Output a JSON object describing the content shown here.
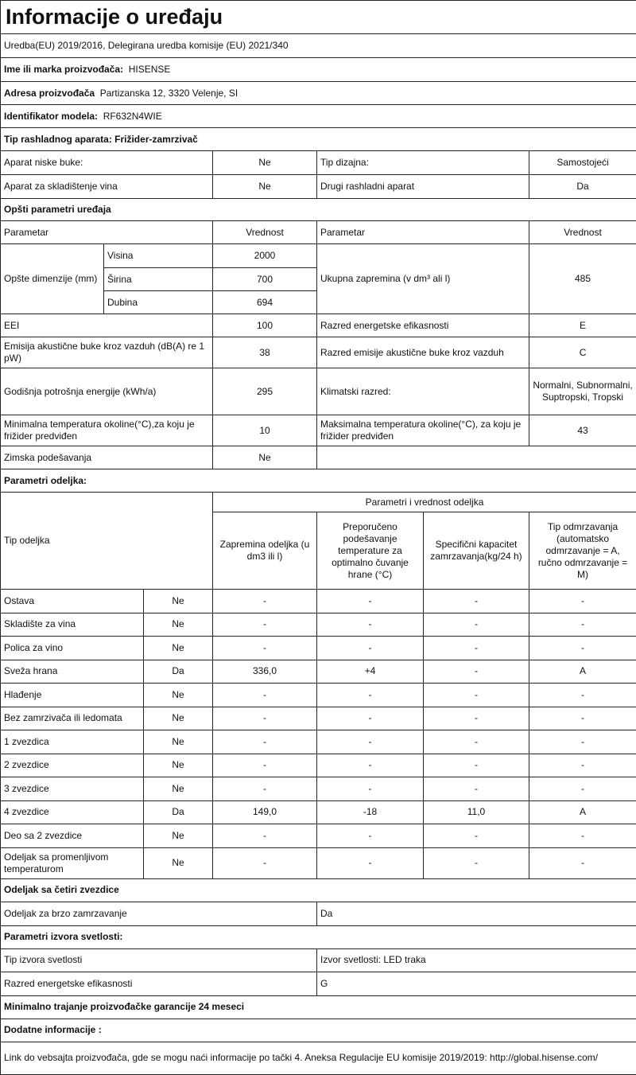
{
  "title": "Informacije o uređaju",
  "subtitle": "Uredba(EU) 2019/2016, Delegirana uredba komisije (EU) 2021/340",
  "manufacturer": {
    "label": "Ime ili marka proizvođača:",
    "value": "HISENSE"
  },
  "address": {
    "label": "Adresa proizvođača",
    "value": "Partizanska 12, 3320 Velenje, SI"
  },
  "model": {
    "label": "Identifikator modela:",
    "value": "RF632N4WIE"
  },
  "appliance_type": "Tip rashladnog aparata: Frižider-zamrzivač",
  "flags": [
    {
      "label": "Aparat niske buke:",
      "value": "Ne",
      "label2": "Tip dizajna:",
      "value2": "Samostojeći"
    },
    {
      "label": "Aparat za skladištenje vina",
      "value": "Ne",
      "label2": "Drugi rashladni aparat",
      "value2": "Da"
    }
  ],
  "general": {
    "heading": "Opšti parametri uređaja",
    "col_param": "Parametar",
    "col_value": "Vrednost",
    "dimensions_label": "Opšte dimenzije (mm)",
    "dimensions": [
      {
        "label": "Visina",
        "value": "2000"
      },
      {
        "label": "Širina",
        "value": "700"
      },
      {
        "label": "Dubina",
        "value": "694"
      }
    ],
    "volume_label": "Ukupna zapremina (v dm³ ali l)",
    "volume_value": "485",
    "rows": [
      {
        "label": "EEI",
        "value": "100",
        "label2": "Razred energetske efikasnosti",
        "value2": "E"
      },
      {
        "label": "Emisija akustične buke kroz vazduh (dB(A) re 1 pW)",
        "value": "38",
        "label2": "Razred emisije akustične buke kroz vazduh",
        "value2": "C"
      },
      {
        "label": "Godišnja potrošnja energije (kWh/a)",
        "value": "295",
        "label2": "Klimatski  razred:",
        "value2": "Normalni, Subnormalni, Suptropski, Tropski"
      },
      {
        "label": "Minimalna temperatura okoline(°C),za koju je frižider predviđen",
        "value": "10",
        "label2": "Maksimalna temperatura okoline(°C), za koju je frižider predviđen",
        "value2": "43"
      }
    ],
    "winter": {
      "label": "Zimska podešavanja",
      "value": "Ne"
    }
  },
  "compartments": {
    "heading": "Parametri odeljka:",
    "type_header": "Tip odeljka",
    "group_header": "Parametri i vrednost odeljka",
    "columns": [
      "Zapremina odeljka (u dm3 ili l)",
      "Preporučeno podešavanje temperature za optimalno čuvanje hrane (°C)",
      "Specifični kapacitet zamrzavanja(kg/24 h)",
      "Tip odmrzavanja (automatsko odmrzavanje = A, ručno odmrzavanje = M)"
    ],
    "rows": [
      {
        "name": "Ostava",
        "present": "Ne",
        "v": [
          "-",
          "-",
          "-",
          "-"
        ]
      },
      {
        "name": "Skladište za vina",
        "present": "Ne",
        "v": [
          "-",
          "-",
          "-",
          "-"
        ]
      },
      {
        "name": "Polica za vino",
        "present": "Ne",
        "v": [
          "-",
          "-",
          "-",
          "-"
        ]
      },
      {
        "name": "Sveža  hrana",
        "present": "Da",
        "v": [
          "336,0",
          "+4",
          "-",
          "A"
        ]
      },
      {
        "name": "Hlađenje",
        "present": "Ne",
        "v": [
          "-",
          "-",
          "-",
          "-"
        ]
      },
      {
        "name": "Bez zamrzivača ili ledomata",
        "present": "Ne",
        "v": [
          "-",
          "-",
          "-",
          "-"
        ]
      },
      {
        "name": "1 zvezdica",
        "present": "Ne",
        "v": [
          "-",
          "-",
          "-",
          "-"
        ]
      },
      {
        "name": "2 zvezdice",
        "present": "Ne",
        "v": [
          "-",
          "-",
          "-",
          "-"
        ]
      },
      {
        "name": "3 zvezdice",
        "present": "Ne",
        "v": [
          "-",
          "-",
          "-",
          "-"
        ]
      },
      {
        "name": "4 zvezdice",
        "present": "Da",
        "v": [
          "149,0",
          "-18",
          "11,0",
          "A"
        ]
      },
      {
        "name": "Deo sa 2 zvezdice",
        "present": "Ne",
        "v": [
          "-",
          "-",
          "-",
          "-"
        ]
      },
      {
        "name": "Odeljak sa promenljivom temperaturom",
        "present": "Ne",
        "v": [
          "-",
          "-",
          "-",
          "-"
        ]
      }
    ]
  },
  "four_star": {
    "heading": "Odeljak sa četiri zvezdice",
    "label": "Odeljak za brzo zamrzavanje",
    "value": "Da"
  },
  "light": {
    "heading": "Parametri izvora svetlosti:",
    "rows": [
      {
        "label": "Tip izvora svetlosti",
        "value": "Izvor svetlosti: LED traka"
      },
      {
        "label": "Razred energetske efikasnosti",
        "value": "G"
      }
    ]
  },
  "warranty": "Minimalno trajanje proizvođačke garancije  24 meseci",
  "additional": {
    "heading": "Dodatne informacije :",
    "text": "Link do vebsajta proizvođača, gde se mogu naći informacije po tački 4. Aneksa Regulacije EU komisije 2019/2019: http://global.hisense.com/"
  }
}
